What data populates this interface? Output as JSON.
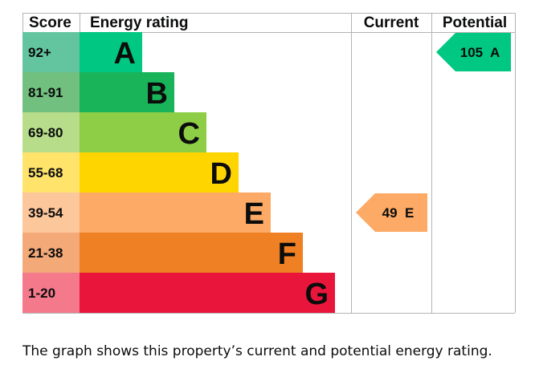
{
  "headers": {
    "score": "Score",
    "rating": "Energy rating",
    "current": "Current",
    "potential": "Potential"
  },
  "chart_data": {
    "type": "bar",
    "categories": [
      "A",
      "B",
      "C",
      "D",
      "E",
      "F",
      "G"
    ],
    "score_bands": [
      "92+",
      "81-91",
      "69-80",
      "55-68",
      "39-54",
      "21-38",
      "1-20"
    ],
    "band_colors": [
      "#00c781",
      "#19b459",
      "#8dce46",
      "#ffd500",
      "#fcaa65",
      "#ef8023",
      "#e9153b"
    ],
    "score_cell_colors": [
      "#62c5a0",
      "#72c07f",
      "#b7dd8a",
      "#ffe36b",
      "#fcc79b",
      "#f3a978",
      "#f4798b"
    ],
    "current": {
      "value": 49,
      "band": "E",
      "label": "49  E",
      "color": "#fcaa65"
    },
    "potential": {
      "value": 105,
      "band": "A",
      "label": "105  A",
      "color": "#00c781"
    }
  },
  "caption": "The graph shows this property’s current and potential energy rating."
}
